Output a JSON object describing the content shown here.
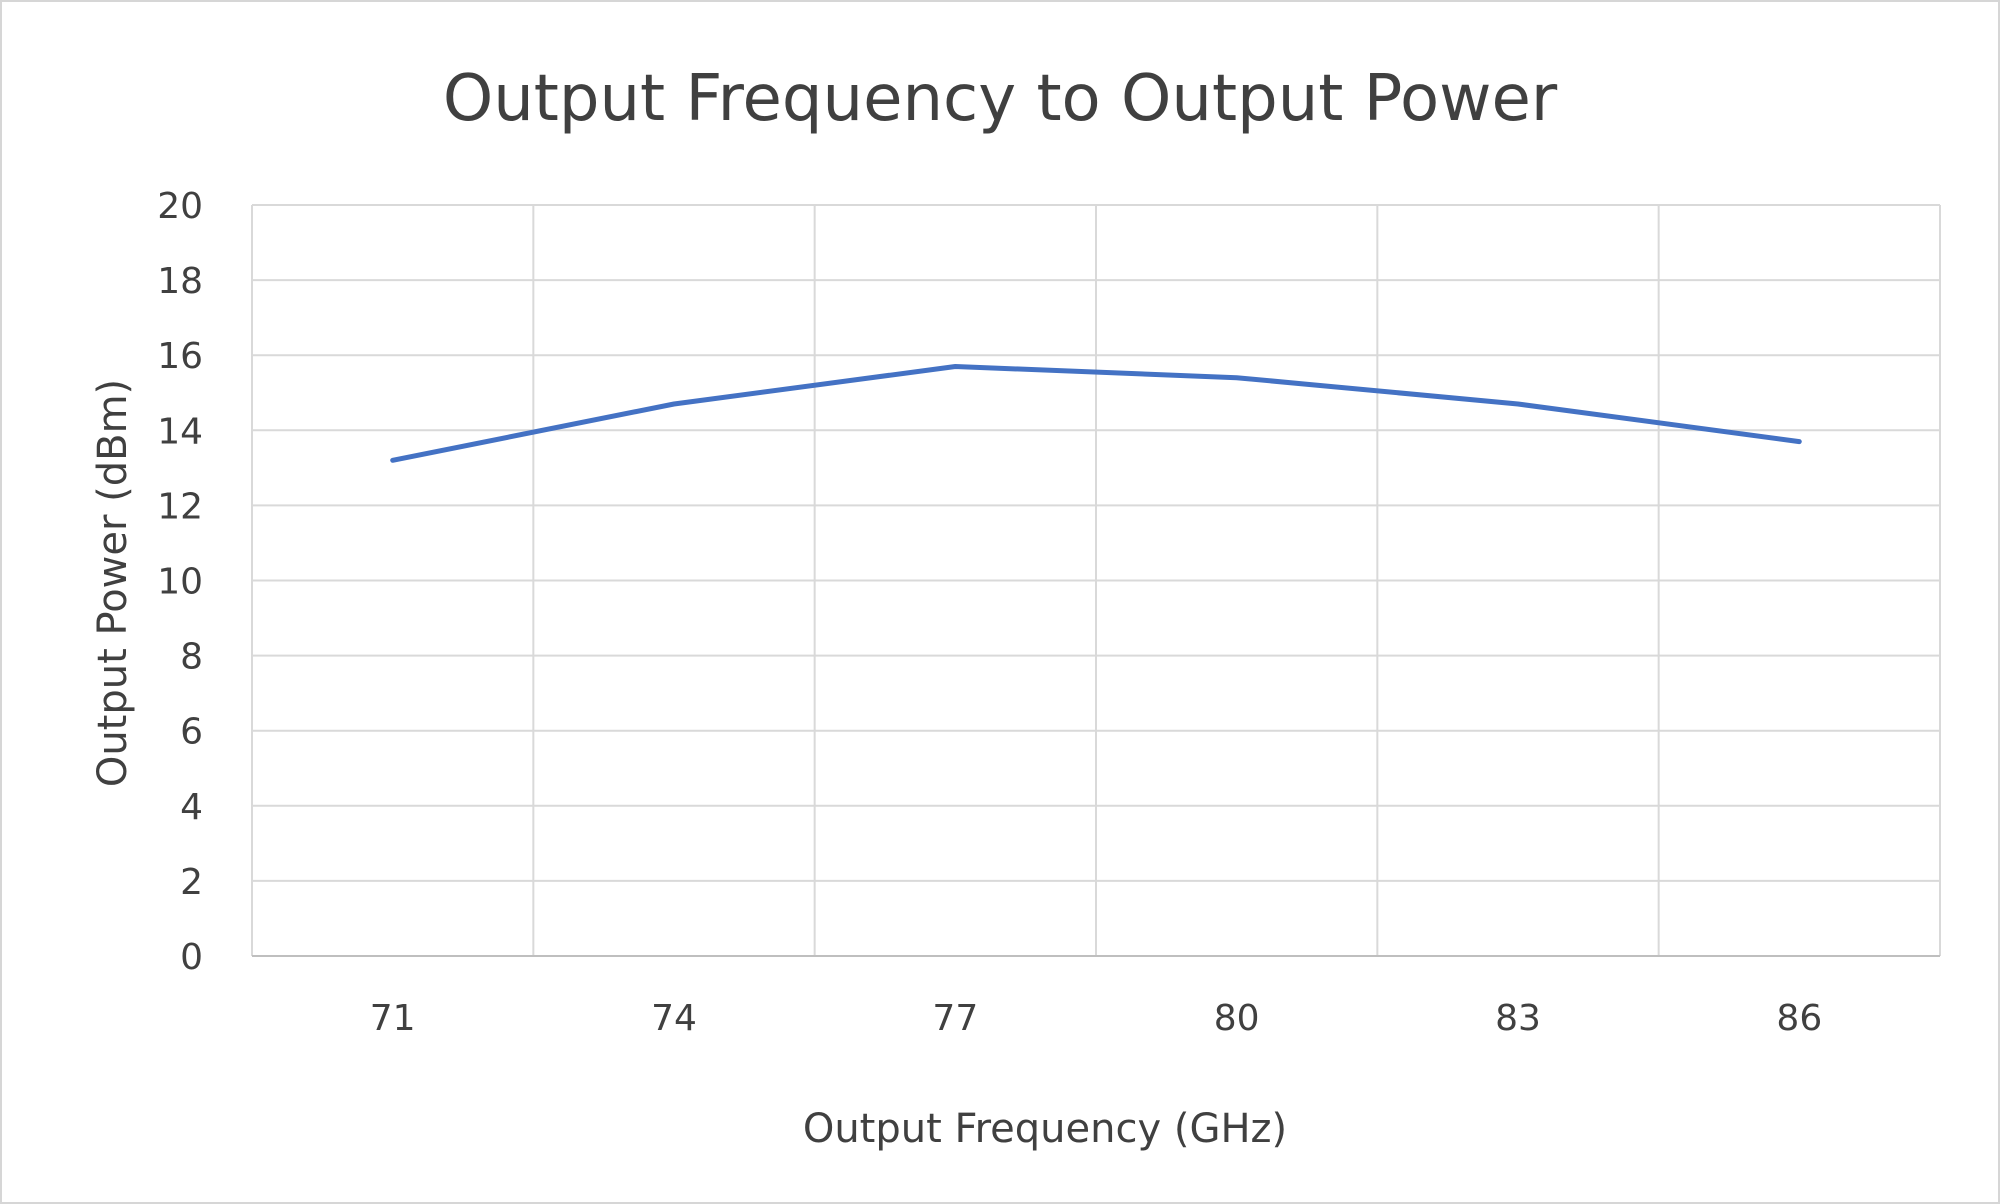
{
  "chart_data": {
    "type": "line",
    "title": "Output Frequency to Output Power",
    "xlabel": "Output Frequency (GHz)",
    "ylabel": "Output Power (dBm)",
    "categories": [
      "71",
      "74",
      "77",
      "80",
      "83",
      "86"
    ],
    "series": [
      {
        "values": [
          13.2,
          14.7,
          15.7,
          15.4,
          14.7,
          13.7
        ]
      }
    ],
    "ylim": [
      0,
      20
    ],
    "yticks": [
      "0",
      "2",
      "4",
      "6",
      "8",
      "10",
      "12",
      "14",
      "16",
      "18",
      "20"
    ],
    "grid": true,
    "legend": "none",
    "colors": {
      "line": "#4472C4",
      "grid": "#d9d9d9",
      "axis": "#bfbfbf",
      "text": "#404040",
      "frame": "#d6d6d6"
    }
  }
}
